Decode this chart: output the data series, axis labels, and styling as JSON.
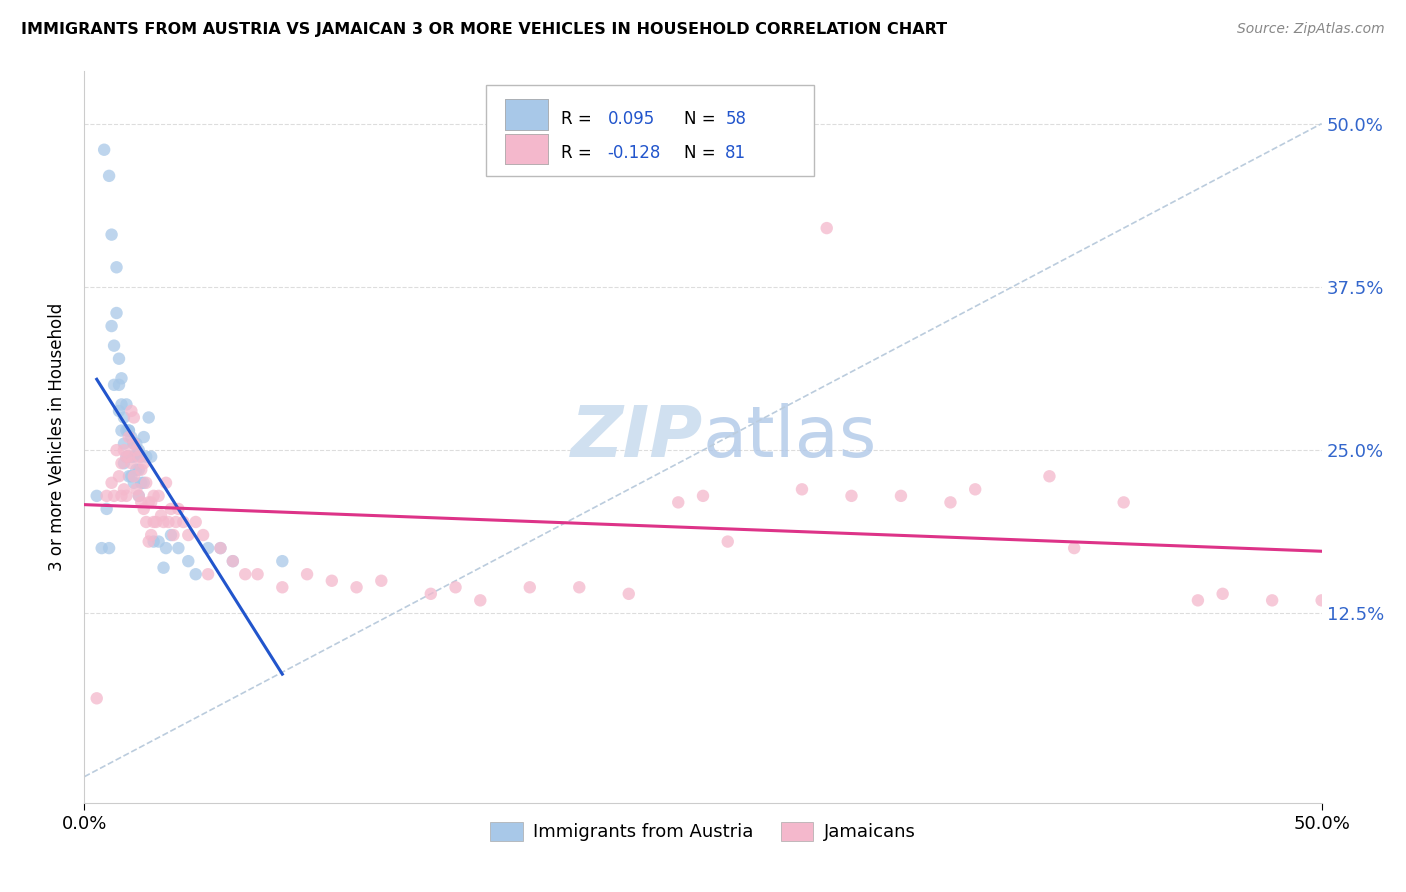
{
  "title": "IMMIGRANTS FROM AUSTRIA VS JAMAICAN 3 OR MORE VEHICLES IN HOUSEHOLD CORRELATION CHART",
  "source": "Source: ZipAtlas.com",
  "ylabel": "3 or more Vehicles in Household",
  "xmin": 0.0,
  "xmax": 0.5,
  "ymin": -0.02,
  "ymax": 0.54,
  "ytick_values": [
    0.125,
    0.25,
    0.375,
    0.5
  ],
  "r1": 0.095,
  "n1": 58,
  "r2": -0.128,
  "n2": 81,
  "color_blue": "#a8c8e8",
  "color_pink": "#f4b8cc",
  "line_blue": "#2255cc",
  "line_pink": "#dd3388",
  "dash_color": "#bbccdd",
  "watermark_color": "#d0e0f0",
  "blue_scatter_x": [
    0.005,
    0.007,
    0.008,
    0.009,
    0.01,
    0.01,
    0.011,
    0.011,
    0.012,
    0.012,
    0.013,
    0.013,
    0.014,
    0.014,
    0.014,
    0.015,
    0.015,
    0.015,
    0.016,
    0.016,
    0.016,
    0.017,
    0.017,
    0.017,
    0.018,
    0.018,
    0.018,
    0.018,
    0.019,
    0.019,
    0.019,
    0.02,
    0.02,
    0.02,
    0.021,
    0.021,
    0.022,
    0.022,
    0.022,
    0.023,
    0.023,
    0.024,
    0.024,
    0.025,
    0.026,
    0.027,
    0.028,
    0.03,
    0.032,
    0.033,
    0.035,
    0.038,
    0.042,
    0.045,
    0.05,
    0.055,
    0.06,
    0.08
  ],
  "blue_scatter_y": [
    0.215,
    0.175,
    0.48,
    0.205,
    0.46,
    0.175,
    0.415,
    0.345,
    0.33,
    0.3,
    0.39,
    0.355,
    0.32,
    0.3,
    0.28,
    0.305,
    0.285,
    0.265,
    0.275,
    0.255,
    0.24,
    0.285,
    0.265,
    0.245,
    0.265,
    0.245,
    0.265,
    0.23,
    0.26,
    0.245,
    0.23,
    0.255,
    0.245,
    0.225,
    0.255,
    0.235,
    0.25,
    0.235,
    0.215,
    0.245,
    0.225,
    0.26,
    0.225,
    0.245,
    0.275,
    0.245,
    0.18,
    0.18,
    0.16,
    0.175,
    0.185,
    0.175,
    0.165,
    0.155,
    0.175,
    0.175,
    0.165,
    0.165
  ],
  "pink_scatter_x": [
    0.005,
    0.009,
    0.011,
    0.012,
    0.013,
    0.014,
    0.015,
    0.015,
    0.016,
    0.016,
    0.017,
    0.017,
    0.018,
    0.018,
    0.019,
    0.019,
    0.02,
    0.02,
    0.02,
    0.021,
    0.021,
    0.022,
    0.022,
    0.023,
    0.023,
    0.024,
    0.024,
    0.025,
    0.025,
    0.026,
    0.026,
    0.027,
    0.027,
    0.028,
    0.028,
    0.029,
    0.03,
    0.031,
    0.032,
    0.033,
    0.034,
    0.035,
    0.036,
    0.037,
    0.038,
    0.04,
    0.042,
    0.045,
    0.048,
    0.05,
    0.055,
    0.06,
    0.065,
    0.07,
    0.08,
    0.09,
    0.1,
    0.11,
    0.12,
    0.14,
    0.16,
    0.18,
    0.2,
    0.22,
    0.24,
    0.26,
    0.29,
    0.31,
    0.33,
    0.36,
    0.39,
    0.42,
    0.46,
    0.48,
    0.5,
    0.3,
    0.35,
    0.4,
    0.45,
    0.25,
    0.15
  ],
  "pink_scatter_y": [
    0.06,
    0.215,
    0.225,
    0.215,
    0.25,
    0.23,
    0.24,
    0.215,
    0.25,
    0.22,
    0.245,
    0.215,
    0.26,
    0.245,
    0.28,
    0.24,
    0.275,
    0.255,
    0.23,
    0.25,
    0.22,
    0.245,
    0.215,
    0.235,
    0.21,
    0.24,
    0.205,
    0.225,
    0.195,
    0.21,
    0.18,
    0.21,
    0.185,
    0.215,
    0.195,
    0.195,
    0.215,
    0.2,
    0.195,
    0.225,
    0.195,
    0.205,
    0.185,
    0.195,
    0.205,
    0.195,
    0.185,
    0.195,
    0.185,
    0.155,
    0.175,
    0.165,
    0.155,
    0.155,
    0.145,
    0.155,
    0.15,
    0.145,
    0.15,
    0.14,
    0.135,
    0.145,
    0.145,
    0.14,
    0.21,
    0.18,
    0.22,
    0.215,
    0.215,
    0.22,
    0.23,
    0.21,
    0.14,
    0.135,
    0.135,
    0.42,
    0.21,
    0.175,
    0.135,
    0.215,
    0.145
  ],
  "background_color": "#ffffff",
  "grid_color": "#dddddd"
}
